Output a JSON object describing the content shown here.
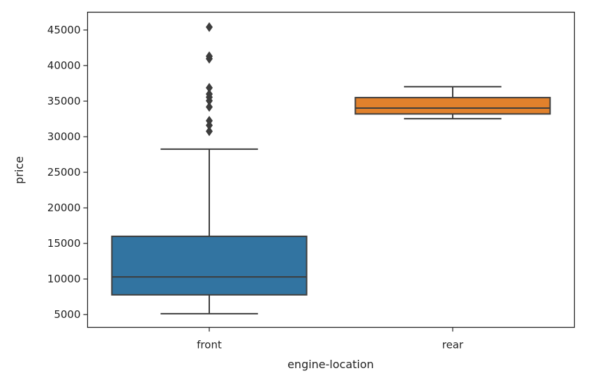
{
  "chart_data": {
    "type": "box",
    "xlabel": "engine-location",
    "ylabel": "price",
    "ylim": [
      3200,
      47500
    ],
    "yticks": [
      5000,
      10000,
      15000,
      20000,
      25000,
      30000,
      35000,
      40000,
      45000
    ],
    "categories": [
      "front",
      "rear"
    ],
    "boxes": [
      {
        "category": "front",
        "color": "#3274a1",
        "whisker_low": 5118,
        "q1": 7775,
        "median": 10295,
        "q3": 16000,
        "whisker_high": 28248,
        "outliers": [
          30760,
          31600,
          32250,
          34184,
          35056,
          35550,
          36000,
          36880,
          40960,
          41315,
          45400
        ]
      },
      {
        "category": "rear",
        "color": "#e1812c",
        "whisker_low": 32528,
        "q1": 33200,
        "median": 34028,
        "q3": 35500,
        "whisker_high": 37028,
        "outliers": []
      }
    ],
    "grid": false,
    "legend": "none"
  }
}
